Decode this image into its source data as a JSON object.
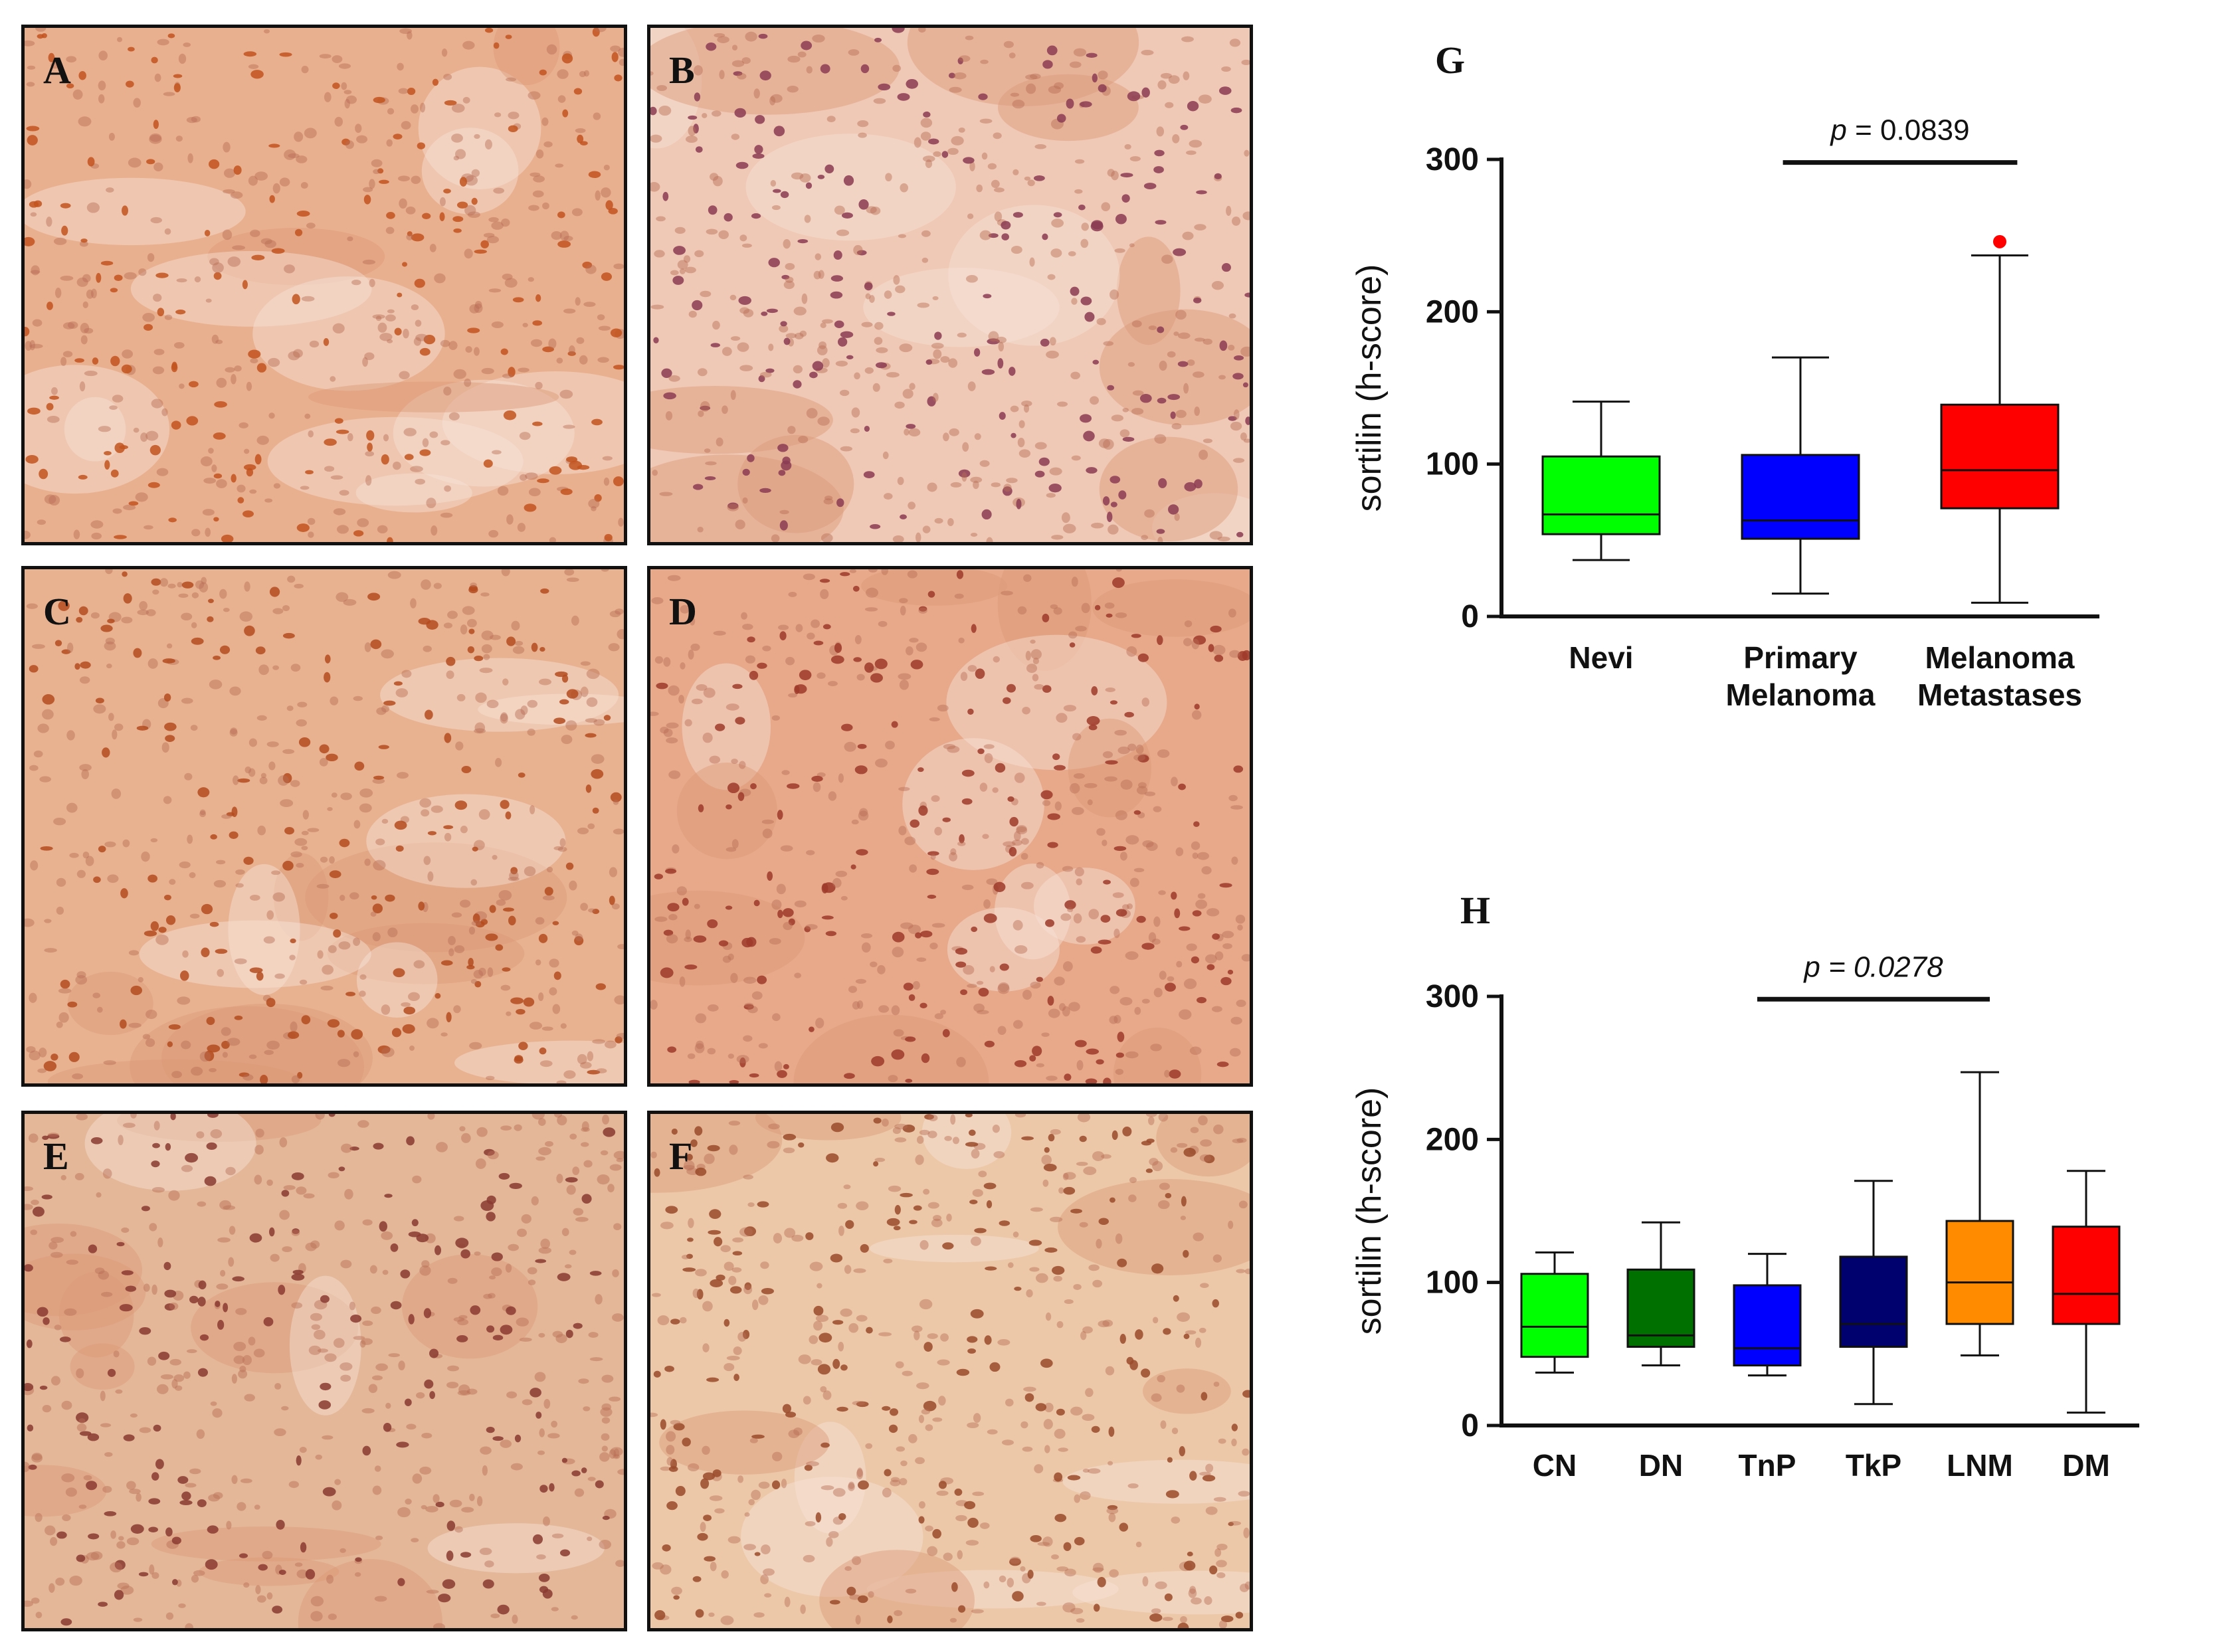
{
  "figure": {
    "micrograph_panels": [
      {
        "letter": "A",
        "tone": "#e9b08f",
        "spot": "#c2541f"
      },
      {
        "letter": "B",
        "tone": "#efc9b5",
        "spot": "#8b3b52"
      },
      {
        "letter": "C",
        "tone": "#e8b291",
        "spot": "#b44b1f"
      },
      {
        "letter": "D",
        "tone": "#e7a98a",
        "spot": "#9d3a2a"
      },
      {
        "letter": "E",
        "tone": "#e3b798",
        "spot": "#8a3a30"
      },
      {
        "letter": "F",
        "tone": "#ecc8a8",
        "spot": "#9a4a2a"
      }
    ]
  },
  "chart_data": [
    {
      "panel": "G",
      "type": "box",
      "ylabel": "sortilin (h-score)",
      "ylim": [
        0,
        300
      ],
      "yticks": [
        0,
        100,
        200,
        300
      ],
      "categories": [
        "Nevi",
        "Primary\nMelanoma",
        "Melanoma\nMetastases"
      ],
      "boxes": [
        {
          "min": 37,
          "q1": 54,
          "median": 67,
          "q3": 105,
          "max": 141,
          "color": "#00ff00"
        },
        {
          "min": 15,
          "q1": 51,
          "median": 63,
          "q3": 106,
          "max": 170,
          "color": "#0000ff"
        },
        {
          "min": 9,
          "q1": 71,
          "median": 96,
          "q3": 139,
          "max": 237,
          "color": "#ff0000",
          "outliers": [
            246
          ]
        }
      ],
      "significance": {
        "label_p": "p",
        "label_rest": " = 0.0839",
        "italic_value": false,
        "from": 1,
        "to": 2,
        "y": 298
      }
    },
    {
      "panel": "H",
      "type": "box",
      "ylabel": "sortilin (h-score)",
      "ylim": [
        0,
        300
      ],
      "yticks": [
        0,
        100,
        200,
        300
      ],
      "categories": [
        "CN",
        "DN",
        "TnP",
        "TkP",
        "LNM",
        "DM"
      ],
      "boxes": [
        {
          "min": 37,
          "q1": 48,
          "median": 69,
          "q3": 106,
          "max": 121,
          "color": "#00ff00"
        },
        {
          "min": 42,
          "q1": 55,
          "median": 63,
          "q3": 109,
          "max": 142,
          "color": "#007000"
        },
        {
          "min": 35,
          "q1": 42,
          "median": 54,
          "q3": 98,
          "max": 120,
          "color": "#0000ff"
        },
        {
          "min": 15,
          "q1": 55,
          "median": 71,
          "q3": 118,
          "max": 171,
          "color": "#00006e"
        },
        {
          "min": 49,
          "q1": 71,
          "median": 100,
          "q3": 143,
          "max": 247,
          "color": "#ff8c00"
        },
        {
          "min": 9,
          "q1": 71,
          "median": 92,
          "q3": 139,
          "max": 178,
          "color": "#ff0000"
        }
      ],
      "significance": {
        "label_p": "p",
        "label_rest": " = 0.0278",
        "italic_value": true,
        "from": 2,
        "to": 4,
        "y": 298
      }
    }
  ]
}
